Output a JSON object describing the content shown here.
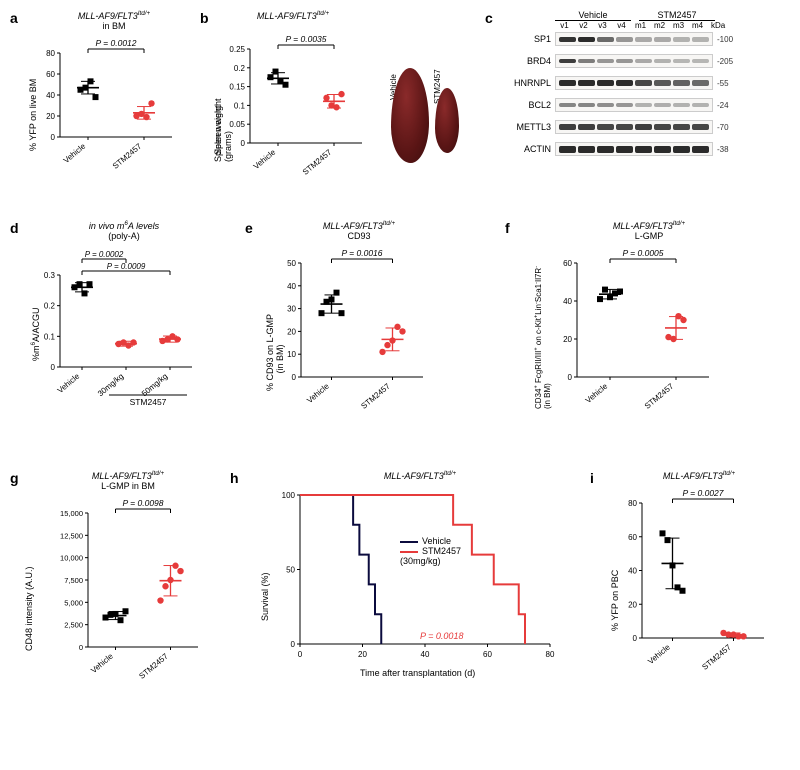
{
  "colors": {
    "vehicle": "#000000",
    "stm": "#e63b3b",
    "step_black": "#0b0b3e",
    "step_red": "#e63b3b"
  },
  "a": {
    "label": "a",
    "title_html": "MLL-AF9/FLT3<sup>Itd/+</sup>",
    "subtitle": "in BM",
    "ylabel": "% YFP on live BM",
    "pval": "P = 0.0012",
    "ylim": [
      0,
      80
    ],
    "ytick_step": 20,
    "groups": [
      {
        "name": "Vehicle",
        "color": "#000000",
        "points": [
          45,
          47,
          53,
          38
        ],
        "mean": 47,
        "sd": 6
      },
      {
        "name": "STM2457",
        "color": "#e63b3b",
        "points": [
          20,
          22,
          19,
          32
        ],
        "mean": 23,
        "sd": 6
      }
    ]
  },
  "b": {
    "label": "b",
    "title_html": "MLL-AF9/FLT3<sup>Itd/+</sup>",
    "ylabel": "Spleen weight\n(grams)",
    "pval": "P = 0.0035",
    "ylim": [
      0,
      0.25
    ],
    "yticks": [
      0,
      0.05,
      0.1,
      0.15,
      0.2,
      0.25
    ],
    "groups": [
      {
        "name": "Vehicle",
        "color": "#000000",
        "points": [
          0.175,
          0.19,
          0.165,
          0.155
        ],
        "mean": 0.172,
        "sd": 0.015
      },
      {
        "name": "STM2457",
        "color": "#e63b3b",
        "points": [
          0.12,
          0.1,
          0.095,
          0.13
        ],
        "mean": 0.111,
        "sd": 0.018
      }
    ],
    "spleen_labels": [
      "Vehicle",
      "STM2457"
    ]
  },
  "c": {
    "label": "c",
    "top_groups": [
      "Vehicle",
      "STM2457"
    ],
    "lanes": [
      "v1",
      "v2",
      "v3",
      "v4",
      "m1",
      "m2",
      "m3",
      "m4"
    ],
    "kda_label": "kDa",
    "rows": [
      {
        "name": "SP1",
        "kda": "-100",
        "intensities": [
          0.9,
          0.95,
          0.6,
          0.35,
          0.25,
          0.25,
          0.2,
          0.2
        ],
        "h": 5
      },
      {
        "name": "BRD4",
        "kda": "-205",
        "intensities": [
          0.85,
          0.5,
          0.35,
          0.35,
          0.25,
          0.2,
          0.18,
          0.18
        ],
        "h": 4
      },
      {
        "name": "HNRNPL",
        "kda": "-55",
        "intensities": [
          0.95,
          0.95,
          0.95,
          0.95,
          0.8,
          0.7,
          0.65,
          0.6
        ],
        "h": 6
      },
      {
        "name": "BCL2",
        "kda": "-24",
        "intensities": [
          0.45,
          0.45,
          0.4,
          0.35,
          0.2,
          0.22,
          0.2,
          0.2
        ],
        "h": 4
      },
      {
        "name": "METTL3",
        "kda": "-70",
        "intensities": [
          0.85,
          0.85,
          0.8,
          0.8,
          0.85,
          0.8,
          0.8,
          0.8
        ],
        "h": 6
      },
      {
        "name": "ACTIN",
        "kda": "-38",
        "intensities": [
          0.95,
          0.95,
          0.95,
          0.95,
          0.95,
          0.95,
          0.95,
          0.95
        ],
        "h": 7
      }
    ]
  },
  "d": {
    "label": "d",
    "title_html": "<i>in vivo</i> m<sup>6</sup>A levels",
    "subtitle": "(poly-A)",
    "ylabel_html": "%m<sup>6</sup>A/ACGU",
    "ylim": [
      0,
      0.3
    ],
    "ytick_step": 0.1,
    "pvals": [
      {
        "text": "P = 0.0009",
        "from": 0,
        "to": 2
      },
      {
        "text": "P = 0.0002",
        "from": 0,
        "to": 1
      }
    ],
    "bottom_group_label": "STM2457",
    "groups": [
      {
        "name": "Vehicle",
        "color": "#000000",
        "points": [
          0.26,
          0.27,
          0.24,
          0.27
        ],
        "mean": 0.26,
        "sd": 0.015
      },
      {
        "name": "30mg/kg",
        "color": "#e63b3b",
        "points": [
          0.075,
          0.08,
          0.07,
          0.08
        ],
        "mean": 0.076,
        "sd": 0.008
      },
      {
        "name": "50mg/kg",
        "color": "#e63b3b",
        "points": [
          0.085,
          0.09,
          0.1,
          0.09
        ],
        "mean": 0.091,
        "sd": 0.01
      }
    ]
  },
  "e": {
    "label": "e",
    "title_html": "MLL-AF9/FLT3<sup>Itd/+</sup>",
    "subtitle": "CD93",
    "ylabel": "% CD93 on L-GMP\n(in BM)",
    "pval": "P = 0.0016",
    "ylim": [
      0,
      50
    ],
    "ytick_step": 10,
    "groups": [
      {
        "name": "Vehicle",
        "color": "#000000",
        "points": [
          28,
          33,
          34,
          37,
          28
        ],
        "mean": 32,
        "sd": 4
      },
      {
        "name": "STM2457",
        "color": "#e63b3b",
        "points": [
          11,
          14,
          16,
          22,
          20
        ],
        "mean": 16.5,
        "sd": 5
      }
    ]
  },
  "f": {
    "label": "f",
    "title_html": "MLL-AF9/FLT3<sup>Itd/+</sup>",
    "subtitle": "L-GMP",
    "ylabel_html": "CD34<sup>+</sup> FcgRII/III<sup>+</sup> on c-Kit<sup>+</sup>Lin<sup>-</sup>Sca1<sup>-</sup>Il7R<sup>-</sup><br>(in BM)",
    "pval": "P = 0.0005",
    "ylim": [
      0,
      60
    ],
    "ytick_step": 20,
    "groups": [
      {
        "name": "Vehicle",
        "color": "#000000",
        "points": [
          41,
          46,
          42,
          44,
          45
        ],
        "mean": 43.6,
        "sd": 2.5
      },
      {
        "name": "STM2457",
        "color": "#e63b3b",
        "points": [
          21,
          20,
          32,
          30
        ],
        "mean": 25.8,
        "sd": 6
      }
    ]
  },
  "g": {
    "label": "g",
    "title_html": "MLL-AF9/FLT3<sup>Itd/+</sup>",
    "subtitle": "L-GMP in BM",
    "ylabel": "CD48 intensity (A.U.)",
    "pval": "P = 0.0098",
    "ylim": [
      0,
      15000
    ],
    "yticks": [
      0,
      2500,
      5000,
      7500,
      10000,
      12500,
      15000
    ],
    "ytick_labels": [
      "0",
      "2,500",
      "5,000",
      "7,500",
      "10,000",
      "12,500",
      "15,000"
    ],
    "groups": [
      {
        "name": "Vehicle",
        "color": "#000000",
        "points": [
          3300,
          3600,
          3700,
          3000,
          4000
        ],
        "mean": 3520,
        "sd": 450
      },
      {
        "name": "STM2457",
        "color": "#e63b3b",
        "points": [
          5200,
          6800,
          7500,
          9100,
          8500
        ],
        "mean": 7420,
        "sd": 1700
      }
    ]
  },
  "h": {
    "label": "h",
    "title_html": "MLL-AF9/FLT3<sup>Itd/+</sup>",
    "ylabel": "Survival (%)",
    "xlabel": "Time after transplantation (d)",
    "xlim": [
      0,
      80
    ],
    "xtick_step": 20,
    "ylim": [
      0,
      100
    ],
    "ytick_step": 50,
    "pval": "P = 0.0018",
    "pval_color": "#e63b3b",
    "legend": [
      {
        "color": "#0b0b3e",
        "label": "Vehicle"
      },
      {
        "color": "#e63b3b",
        "label": "STM2457\n(30mg/kg)"
      }
    ],
    "series": [
      {
        "color": "#0b0b3e",
        "steps": [
          [
            0,
            100
          ],
          [
            17,
            100
          ],
          [
            17,
            80
          ],
          [
            19,
            80
          ],
          [
            19,
            60
          ],
          [
            22,
            60
          ],
          [
            22,
            40
          ],
          [
            24,
            40
          ],
          [
            24,
            20
          ],
          [
            26,
            20
          ],
          [
            26,
            0
          ]
        ]
      },
      {
        "color": "#e63b3b",
        "steps": [
          [
            0,
            100
          ],
          [
            49,
            100
          ],
          [
            49,
            80
          ],
          [
            55,
            80
          ],
          [
            55,
            60
          ],
          [
            62,
            60
          ],
          [
            62,
            40
          ],
          [
            70,
            40
          ],
          [
            70,
            20
          ],
          [
            72,
            20
          ],
          [
            72,
            0
          ]
        ]
      }
    ]
  },
  "i": {
    "label": "i",
    "title_html": "MLL-AF9/FLT3<sup>Itd/+</sup>",
    "ylabel": "% YFP on PBC",
    "pval": "P = 0.0027",
    "ylim": [
      0,
      80
    ],
    "ytick_step": 20,
    "groups": [
      {
        "name": "Vehicle",
        "color": "#000000",
        "points": [
          62,
          58,
          43,
          30,
          28
        ],
        "mean": 44.2,
        "sd": 15
      },
      {
        "name": "STM2457",
        "color": "#e63b3b",
        "points": [
          3,
          2,
          2,
          1,
          1
        ],
        "mean": 1.8,
        "sd": 1.2
      }
    ]
  }
}
